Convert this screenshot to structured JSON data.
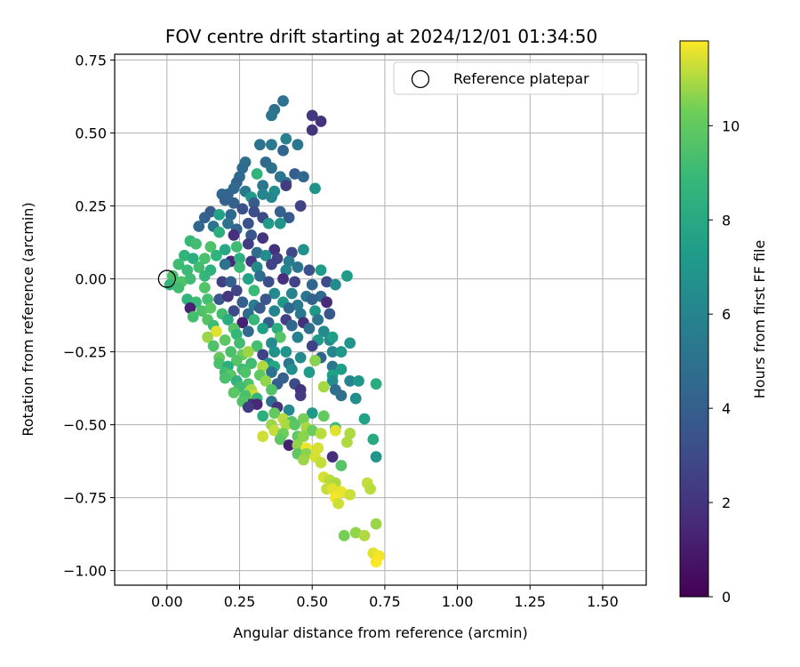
{
  "chart_data": {
    "type": "scatter",
    "title": "FOV centre drift starting at 2024/12/01 01:34:50",
    "xlabel": "Angular distance from reference (arcmin)",
    "ylabel": "Rotation from reference (arcmin)",
    "xlim": [
      -0.18,
      1.65
    ],
    "ylim": [
      -1.05,
      0.77
    ],
    "xticks": [
      0.0,
      0.25,
      0.5,
      0.75,
      1.0,
      1.25,
      1.5
    ],
    "xtick_labels": [
      "0.00",
      "0.25",
      "0.50",
      "0.75",
      "1.00",
      "1.25",
      "1.50"
    ],
    "yticks": [
      0.75,
      0.5,
      0.25,
      0.0,
      -0.25,
      -0.5,
      -0.75,
      -1.0
    ],
    "ytick_labels": [
      "0.75",
      "0.50",
      "0.25",
      "0.00",
      "−0.25",
      "−0.50",
      "−0.75",
      "−1.00"
    ],
    "grid": true,
    "legend": {
      "label": "Reference platepar",
      "position": "upper right"
    },
    "reference_point": {
      "x": 0.0,
      "y": 0.0
    },
    "colorbar": {
      "label": "Hours from first FF file",
      "colormap": "viridis",
      "range": [
        0,
        11.8
      ],
      "ticks": [
        0,
        2,
        4,
        6,
        8,
        10
      ],
      "tick_labels": [
        "0",
        "2",
        "4",
        "6",
        "8",
        "10"
      ]
    },
    "points": [
      [
        0.4,
        0.61,
        5.0
      ],
      [
        0.37,
        0.58,
        4.8
      ],
      [
        0.36,
        0.56,
        5.2
      ],
      [
        0.5,
        0.56,
        2.1
      ],
      [
        0.53,
        0.54,
        2.0
      ],
      [
        0.5,
        0.51,
        2.0
      ],
      [
        0.32,
        0.46,
        5.1
      ],
      [
        0.36,
        0.46,
        5.4
      ],
      [
        0.41,
        0.48,
        5.8
      ],
      [
        0.45,
        0.46,
        5.3
      ],
      [
        0.4,
        0.44,
        4.3
      ],
      [
        0.27,
        0.4,
        4.9
      ],
      [
        0.34,
        0.4,
        4.6
      ],
      [
        0.26,
        0.38,
        4.6
      ],
      [
        0.25,
        0.35,
        4.5
      ],
      [
        0.31,
        0.36,
        8.6
      ],
      [
        0.36,
        0.38,
        4.8
      ],
      [
        0.39,
        0.35,
        5.2
      ],
      [
        0.44,
        0.36,
        4.0
      ],
      [
        0.47,
        0.35,
        4.5
      ],
      [
        0.24,
        0.33,
        4.3
      ],
      [
        0.23,
        0.31,
        4.6
      ],
      [
        0.21,
        0.29,
        4.3
      ],
      [
        0.27,
        0.3,
        5.4
      ],
      [
        0.33,
        0.32,
        5.3
      ],
      [
        0.41,
        0.33,
        5.0
      ],
      [
        0.29,
        0.28,
        7.1
      ],
      [
        0.33,
        0.29,
        6.0
      ],
      [
        0.37,
        0.3,
        6.5
      ],
      [
        0.41,
        0.32,
        2.4
      ],
      [
        0.51,
        0.31,
        6.8
      ],
      [
        0.19,
        0.29,
        4.4
      ],
      [
        0.2,
        0.27,
        4.1
      ],
      [
        0.23,
        0.26,
        4.2
      ],
      [
        0.26,
        0.24,
        3.3
      ],
      [
        0.3,
        0.26,
        3.9
      ],
      [
        0.36,
        0.28,
        6.1
      ],
      [
        0.46,
        0.25,
        2.6
      ],
      [
        0.15,
        0.23,
        3.8
      ],
      [
        0.18,
        0.22,
        7.6
      ],
      [
        0.22,
        0.22,
        4.5
      ],
      [
        0.3,
        0.23,
        3.2
      ],
      [
        0.33,
        0.21,
        2.9
      ],
      [
        0.39,
        0.23,
        4.1
      ],
      [
        0.42,
        0.21,
        3.8
      ],
      [
        0.13,
        0.21,
        4.2
      ],
      [
        0.16,
        0.18,
        5.1
      ],
      [
        0.21,
        0.19,
        5.0
      ],
      [
        0.24,
        0.17,
        4.3
      ],
      [
        0.28,
        0.19,
        3.4
      ],
      [
        0.35,
        0.19,
        7.2
      ],
      [
        0.39,
        0.19,
        6.9
      ],
      [
        0.11,
        0.18,
        4.5
      ],
      [
        0.18,
        0.16,
        8.3
      ],
      [
        0.23,
        0.15,
        1.8
      ],
      [
        0.29,
        0.15,
        3.6
      ],
      [
        0.33,
        0.14,
        2.0
      ],
      [
        0.08,
        0.13,
        8.9
      ],
      [
        0.1,
        0.12,
        9.2
      ],
      [
        0.15,
        0.11,
        9.5
      ],
      [
        0.2,
        0.1,
        7.9
      ],
      [
        0.24,
        0.11,
        9.1
      ],
      [
        0.28,
        0.12,
        2.4
      ],
      [
        0.31,
        0.09,
        4.7
      ],
      [
        0.37,
        0.1,
        1.9
      ],
      [
        0.43,
        0.09,
        3.0
      ],
      [
        0.47,
        0.1,
        6.7
      ],
      [
        0.06,
        0.08,
        8.7
      ],
      [
        0.09,
        0.07,
        8.3
      ],
      [
        0.13,
        0.07,
        9.4
      ],
      [
        0.17,
        0.08,
        8.6
      ],
      [
        0.22,
        0.06,
        1.5
      ],
      [
        0.25,
        0.07,
        8.3
      ],
      [
        0.29,
        0.06,
        2.2
      ],
      [
        0.34,
        0.08,
        6.5
      ],
      [
        0.38,
        0.07,
        2.6
      ],
      [
        0.42,
        0.06,
        5.5
      ],
      [
        0.04,
        0.05,
        9.1
      ],
      [
        0.07,
        0.03,
        9.0
      ],
      [
        0.11,
        0.04,
        9.2
      ],
      [
        0.15,
        0.03,
        8.4
      ],
      [
        0.2,
        0.05,
        5.1
      ],
      [
        0.25,
        0.04,
        9.0
      ],
      [
        0.31,
        0.04,
        6.2
      ],
      [
        0.36,
        0.05,
        2.7
      ],
      [
        0.41,
        0.03,
        6.1
      ],
      [
        0.45,
        0.04,
        5.2
      ],
      [
        0.49,
        0.03,
        3.3
      ],
      [
        0.53,
        0.03,
        7.3
      ],
      [
        0.62,
        0.01,
        7.3
      ],
      [
        0.02,
        0.01,
        9.4
      ],
      [
        0.05,
        -0.01,
        9.6
      ],
      [
        0.08,
        0.0,
        9.1
      ],
      [
        0.13,
        0.01,
        8.8
      ],
      [
        0.19,
        -0.01,
        2.5
      ],
      [
        0.22,
        -0.01,
        4.0
      ],
      [
        0.28,
        0.0,
        7.6
      ],
      [
        0.32,
        0.01,
        4.7
      ],
      [
        0.35,
        -0.01,
        3.2
      ],
      [
        0.4,
        0.0,
        1.8
      ],
      [
        0.44,
        -0.01,
        2.7
      ],
      [
        0.5,
        -0.02,
        4.4
      ],
      [
        0.55,
        -0.01,
        3.0
      ],
      [
        0.58,
        -0.02,
        6.4
      ],
      [
        0.01,
        -0.02,
        8.7
      ],
      [
        0.04,
        -0.03,
        9.2
      ],
      [
        0.13,
        -0.03,
        9.6
      ],
      [
        0.24,
        -0.04,
        2.8
      ],
      [
        0.3,
        -0.04,
        9.0
      ],
      [
        0.37,
        -0.05,
        6.3
      ],
      [
        0.43,
        -0.05,
        5.9
      ],
      [
        0.48,
        -0.06,
        5.2
      ],
      [
        0.53,
        -0.06,
        4.5
      ],
      [
        0.07,
        -0.07,
        8.6
      ],
      [
        0.1,
        -0.08,
        9.0
      ],
      [
        0.14,
        -0.07,
        9.3
      ],
      [
        0.18,
        -0.07,
        3.6
      ],
      [
        0.21,
        -0.06,
        2.1
      ],
      [
        0.26,
        -0.08,
        4.0
      ],
      [
        0.3,
        -0.09,
        5.6
      ],
      [
        0.34,
        -0.07,
        3.6
      ],
      [
        0.4,
        -0.08,
        7.1
      ],
      [
        0.45,
        -0.09,
        5.4
      ],
      [
        0.5,
        -0.07,
        4.2
      ],
      [
        0.55,
        -0.08,
        1.6
      ],
      [
        0.08,
        -0.1,
        1.3
      ],
      [
        0.12,
        -0.11,
        9.5
      ],
      [
        0.15,
        -0.1,
        9.8
      ],
      [
        0.19,
        -0.12,
        9.2
      ],
      [
        0.23,
        -0.11,
        3.0
      ],
      [
        0.28,
        -0.12,
        4.7
      ],
      [
        0.32,
        -0.1,
        3.8
      ],
      [
        0.37,
        -0.11,
        6.0
      ],
      [
        0.42,
        -0.1,
        4.5
      ],
      [
        0.46,
        -0.12,
        5.3
      ],
      [
        0.51,
        -0.11,
        7.0
      ],
      [
        0.56,
        -0.12,
        3.6
      ],
      [
        0.09,
        -0.13,
        9.3
      ],
      [
        0.14,
        -0.14,
        9.7
      ],
      [
        0.21,
        -0.14,
        8.2
      ],
      [
        0.26,
        -0.15,
        1.2
      ],
      [
        0.3,
        -0.14,
        8.9
      ],
      [
        0.35,
        -0.15,
        4.0
      ],
      [
        0.41,
        -0.14,
        2.5
      ],
      [
        0.47,
        -0.15,
        1.9
      ],
      [
        0.52,
        -0.14,
        5.2
      ],
      [
        0.16,
        -0.16,
        9.1
      ],
      [
        0.23,
        -0.17,
        9.7
      ],
      [
        0.33,
        -0.17,
        7.5
      ],
      [
        0.38,
        -0.17,
        8.3
      ],
      [
        0.43,
        -0.16,
        4.4
      ],
      [
        0.49,
        -0.17,
        4.8
      ],
      [
        0.54,
        -0.18,
        6.3
      ],
      [
        0.17,
        -0.18,
        11.5
      ],
      [
        0.24,
        -0.19,
        8.8
      ],
      [
        0.28,
        -0.18,
        4.6
      ],
      [
        0.39,
        -0.2,
        9.7
      ],
      [
        0.45,
        -0.2,
        5.8
      ],
      [
        0.52,
        -0.21,
        7.1
      ],
      [
        0.56,
        -0.21,
        6.3
      ],
      [
        0.14,
        -0.2,
        10.8
      ],
      [
        0.2,
        -0.21,
        9.9
      ],
      [
        0.25,
        -0.22,
        9.2
      ],
      [
        0.31,
        -0.23,
        9.3
      ],
      [
        0.36,
        -0.22,
        6.3
      ],
      [
        0.5,
        -0.23,
        2.6
      ],
      [
        0.57,
        -0.2,
        7.4
      ],
      [
        0.63,
        -0.22,
        6.9
      ],
      [
        0.16,
        -0.23,
        9.5
      ],
      [
        0.22,
        -0.25,
        9.4
      ],
      [
        0.26,
        -0.26,
        10.2
      ],
      [
        0.28,
        -0.25,
        10.8
      ],
      [
        0.33,
        -0.26,
        2.7
      ],
      [
        0.37,
        -0.25,
        6.8
      ],
      [
        0.41,
        -0.25,
        6.9
      ],
      [
        0.46,
        -0.27,
        6.4
      ],
      [
        0.53,
        -0.27,
        4.3
      ],
      [
        0.57,
        -0.25,
        6.0
      ],
      [
        0.6,
        -0.25,
        7.0
      ],
      [
        0.18,
        -0.27,
        10.0
      ],
      [
        0.24,
        -0.28,
        9.7
      ],
      [
        0.29,
        -0.29,
        9.2
      ],
      [
        0.35,
        -0.29,
        6.7
      ],
      [
        0.42,
        -0.29,
        5.4
      ],
      [
        0.18,
        -0.29,
        9.4
      ],
      [
        0.21,
        -0.3,
        8.2
      ],
      [
        0.26,
        -0.31,
        9.1
      ],
      [
        0.33,
        -0.3,
        11.0
      ],
      [
        0.37,
        -0.3,
        7.9
      ],
      [
        0.43,
        -0.31,
        6.6
      ],
      [
        0.51,
        -0.28,
        10.6
      ],
      [
        0.57,
        -0.3,
        5.2
      ],
      [
        0.6,
        -0.31,
        7.3
      ],
      [
        0.2,
        -0.32,
        9.1
      ],
      [
        0.22,
        -0.33,
        9.8
      ],
      [
        0.27,
        -0.32,
        9.5
      ],
      [
        0.32,
        -0.33,
        9.9
      ],
      [
        0.36,
        -0.32,
        5.0
      ],
      [
        0.4,
        -0.34,
        4.1
      ],
      [
        0.49,
        -0.32,
        7.2
      ],
      [
        0.57,
        -0.33,
        7.5
      ],
      [
        0.2,
        -0.34,
        9.4
      ],
      [
        0.24,
        -0.35,
        8.5
      ],
      [
        0.28,
        -0.36,
        9.5
      ],
      [
        0.34,
        -0.35,
        10.7
      ],
      [
        0.38,
        -0.36,
        4.0
      ],
      [
        0.44,
        -0.36,
        3.0
      ],
      [
        0.57,
        -0.35,
        6.6
      ],
      [
        0.63,
        -0.35,
        6.0
      ],
      [
        0.66,
        -0.35,
        7.0
      ],
      [
        0.72,
        -0.36,
        8.2
      ],
      [
        0.25,
        -0.37,
        9.2
      ],
      [
        0.29,
        -0.38,
        10.9
      ],
      [
        0.3,
        -0.4,
        11.3
      ],
      [
        0.36,
        -0.38,
        9.6
      ],
      [
        0.46,
        -0.38,
        2.0
      ],
      [
        0.54,
        -0.37,
        10.9
      ],
      [
        0.58,
        -0.38,
        4.7
      ],
      [
        0.23,
        -0.39,
        9.8
      ],
      [
        0.27,
        -0.4,
        9.4
      ],
      [
        0.31,
        -0.41,
        8.7
      ],
      [
        0.36,
        -0.42,
        4.9
      ],
      [
        0.46,
        -0.4,
        2.3
      ],
      [
        0.6,
        -0.4,
        4.8
      ],
      [
        0.65,
        -0.41,
        6.5
      ],
      [
        0.26,
        -0.42,
        9.8
      ],
      [
        0.29,
        -0.43,
        1.9
      ],
      [
        0.31,
        -0.43,
        1.5
      ],
      [
        0.38,
        -0.44,
        2.0
      ],
      [
        0.42,
        -0.45,
        6.3
      ],
      [
        0.5,
        -0.46,
        7.1
      ],
      [
        0.26,
        -0.42,
        9.6
      ],
      [
        0.28,
        -0.44,
        2.4
      ],
      [
        0.37,
        -0.46,
        10.0
      ],
      [
        0.4,
        -0.48,
        11.1
      ],
      [
        0.43,
        -0.49,
        9.6
      ],
      [
        0.47,
        -0.48,
        10.4
      ],
      [
        0.54,
        -0.47,
        10.0
      ],
      [
        0.68,
        -0.48,
        7.6
      ],
      [
        0.33,
        -0.47,
        8.4
      ],
      [
        0.36,
        -0.5,
        10.8
      ],
      [
        0.41,
        -0.5,
        11.0
      ],
      [
        0.44,
        -0.5,
        9.8
      ],
      [
        0.48,
        -0.51,
        10.9
      ],
      [
        0.5,
        -0.52,
        10.2
      ],
      [
        0.58,
        -0.51,
        9.1
      ],
      [
        0.33,
        -0.54,
        11.3
      ],
      [
        0.37,
        -0.52,
        11.2
      ],
      [
        0.4,
        -0.53,
        10.3
      ],
      [
        0.45,
        -0.54,
        10.0
      ],
      [
        0.47,
        -0.54,
        10.6
      ],
      [
        0.53,
        -0.53,
        11.1
      ],
      [
        0.58,
        -0.52,
        11.5
      ],
      [
        0.63,
        -0.53,
        11.0
      ],
      [
        0.39,
        -0.55,
        9.9
      ],
      [
        0.42,
        -0.57,
        1.2
      ],
      [
        0.45,
        -0.57,
        10.7
      ],
      [
        0.48,
        -0.58,
        11.6
      ],
      [
        0.52,
        -0.58,
        11.4
      ],
      [
        0.62,
        -0.56,
        11.0
      ],
      [
        0.71,
        -0.55,
        8.0
      ],
      [
        0.45,
        -0.6,
        9.9
      ],
      [
        0.48,
        -0.6,
        10.6
      ],
      [
        0.51,
        -0.61,
        11.4
      ],
      [
        0.57,
        -0.61,
        1.8
      ],
      [
        0.72,
        -0.61,
        7.0
      ],
      [
        0.47,
        -0.62,
        10.8
      ],
      [
        0.53,
        -0.63,
        11.2
      ],
      [
        0.6,
        -0.64,
        9.7
      ],
      [
        0.54,
        -0.68,
        11.4
      ],
      [
        0.56,
        -0.69,
        11.1
      ],
      [
        0.58,
        -0.7,
        11.0
      ],
      [
        0.55,
        -0.72,
        11.2
      ],
      [
        0.57,
        -0.72,
        11.5
      ],
      [
        0.6,
        -0.73,
        11.6
      ],
      [
        0.63,
        -0.74,
        11.3
      ],
      [
        0.58,
        -0.75,
        11.7
      ],
      [
        0.59,
        -0.77,
        11.3
      ],
      [
        0.69,
        -0.7,
        11.2
      ],
      [
        0.7,
        -0.72,
        11.1
      ],
      [
        0.72,
        -0.84,
        10.8
      ],
      [
        0.61,
        -0.88,
        10.4
      ],
      [
        0.65,
        -0.87,
        10.7
      ],
      [
        0.68,
        -0.88,
        11.0
      ],
      [
        0.71,
        -0.94,
        11.5
      ],
      [
        0.73,
        -0.95,
        11.7
      ],
      [
        0.72,
        -0.97,
        11.8
      ]
    ]
  }
}
